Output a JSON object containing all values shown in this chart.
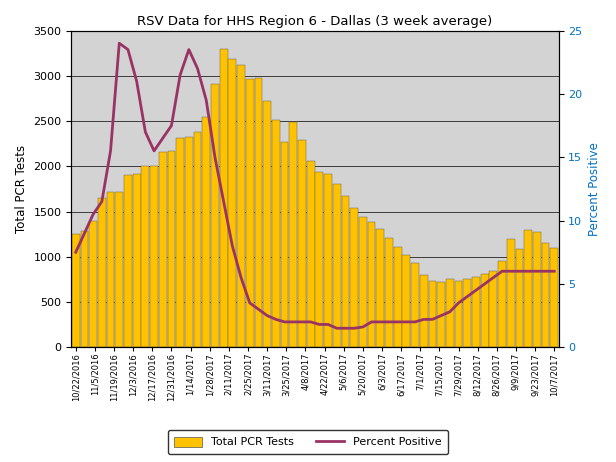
{
  "title": "RSV Data for HHS Region 6 - Dallas (3 week average)",
  "ylabel_left": "Total PCR Tests",
  "ylabel_right": "Percent Positive",
  "ylim_left": [
    0,
    3500
  ],
  "ylim_right": [
    0,
    25
  ],
  "yticks_left": [
    0,
    500,
    1000,
    1500,
    2000,
    2500,
    3000,
    3500
  ],
  "yticks_right": [
    0,
    5,
    10,
    15,
    20,
    25
  ],
  "bar_color": "#FFC200",
  "bar_edge_color": "#555555",
  "line_color": "#993366",
  "background_color": "#d3d3d3",
  "x_tick_labels": [
    "10/22/2016",
    "11/5/2016",
    "11/19/2016",
    "12/3/2016",
    "12/17/2016",
    "12/31/2016",
    "1/14/2017",
    "1/28/2017",
    "2/11/2017",
    "2/25/2017",
    "3/11/2017",
    "3/25/2017",
    "4/8/2017",
    "4/22/2017",
    "5/6/2017",
    "5/20/2017",
    "6/3/2017",
    "6/17/2017",
    "7/1/2017",
    "7/15/2017",
    "7/29/2017",
    "8/12/2017",
    "8/26/2017",
    "9/9/2017",
    "9/23/2017",
    "10/7/2017"
  ],
  "bar_values": [
    1250,
    1290,
    1400,
    1650,
    1720,
    1720,
    1900,
    1920,
    2000,
    2000,
    2160,
    2170,
    2310,
    2320,
    2380,
    2540,
    2910,
    3300,
    3190,
    3120,
    2960,
    2980,
    2720,
    2510,
    2270,
    2490,
    2290,
    2060,
    1940,
    1910,
    1800,
    1670,
    1540,
    1440,
    1380,
    1310,
    1210,
    1110,
    1020,
    930,
    800,
    730,
    720,
    750,
    730,
    750,
    780,
    810,
    840,
    950,
    1200,
    1090,
    1300,
    1270,
    1150,
    1100
  ],
  "percent_positive": [
    7.5,
    9.0,
    10.5,
    11.5,
    15.5,
    24.0,
    23.5,
    21.0,
    17.0,
    15.5,
    16.5,
    17.5,
    21.5,
    23.5,
    22.0,
    19.5,
    15.0,
    11.5,
    8.0,
    5.5,
    3.5,
    3.0,
    2.5,
    2.2,
    2.0,
    2.0,
    2.0,
    2.0,
    1.8,
    1.8,
    1.5,
    1.5,
    1.5,
    1.6,
    2.0,
    2.0,
    2.0,
    2.0,
    2.0,
    2.0,
    2.2,
    2.2,
    2.5,
    2.8,
    3.5,
    4.0,
    4.5,
    5.0,
    5.5,
    6.0,
    6.0,
    6.0,
    6.0,
    6.0,
    6.0,
    6.0
  ],
  "legend_bar_label": "Total PCR Tests",
  "legend_line_label": "Percent Positive"
}
